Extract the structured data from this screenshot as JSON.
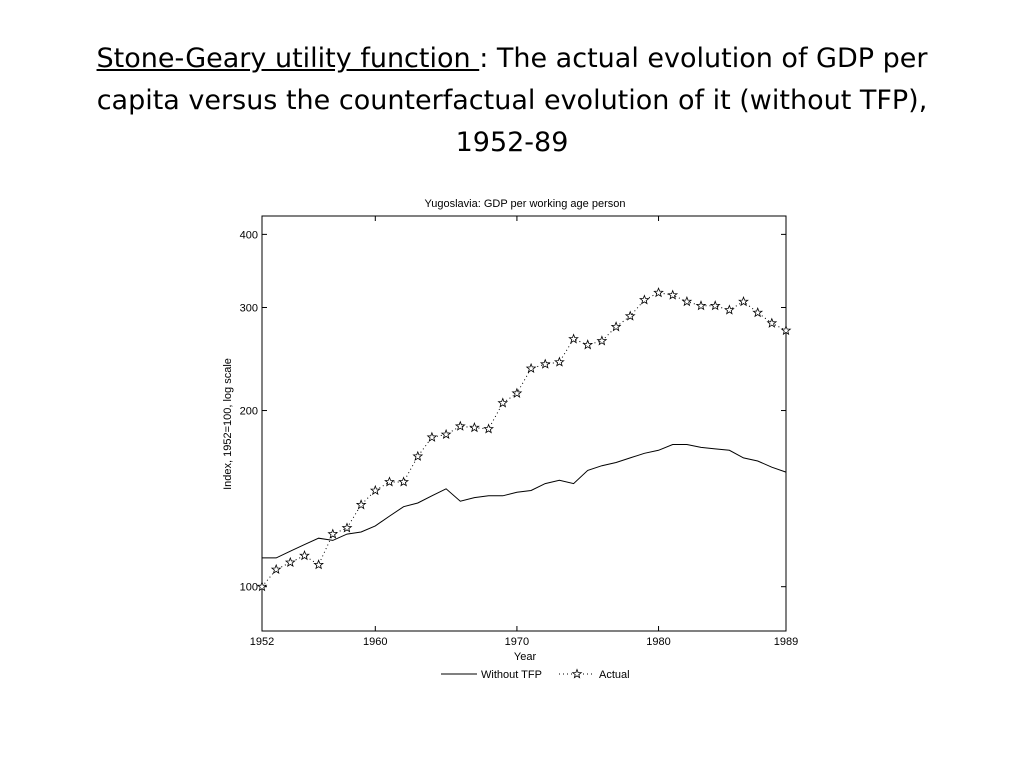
{
  "slide": {
    "title_underlined": "Stone-Geary utility function ",
    "title_rest": ": The actual evolution of GDP per capita versus the counterfactual evolution of it (without TFP), 1952-89"
  },
  "chart_data": {
    "type": "line",
    "title": "Yugoslavia: GDP per working age person",
    "xlabel": "Year",
    "ylabel": "Index, 1952=100, log scale",
    "yscale": "log",
    "xlim": [
      1952,
      1989
    ],
    "ylim": [
      84,
      430
    ],
    "xticks": [
      1952,
      1960,
      1970,
      1980,
      1989
    ],
    "yticks": [
      100,
      200,
      300,
      400
    ],
    "grid": false,
    "legend": "bottom-center",
    "x": [
      1952,
      1953,
      1954,
      1955,
      1956,
      1957,
      1958,
      1959,
      1960,
      1961,
      1962,
      1963,
      1964,
      1965,
      1966,
      1967,
      1968,
      1969,
      1970,
      1971,
      1972,
      1973,
      1974,
      1975,
      1976,
      1977,
      1978,
      1979,
      1980,
      1981,
      1982,
      1983,
      1984,
      1985,
      1986,
      1987,
      1988,
      1989
    ],
    "series": [
      {
        "name": "Without TFP",
        "style": "solid",
        "values": [
          112,
          112,
          115,
          118,
          121,
          120,
          123,
          124,
          127,
          132,
          137,
          139,
          143,
          147,
          140,
          142,
          143,
          143,
          145,
          146,
          150,
          152,
          150,
          158,
          161,
          163,
          166,
          169,
          171,
          175,
          175,
          173,
          172,
          171,
          166,
          164,
          160,
          157
        ]
      },
      {
        "name": "Actual",
        "style": "dotted-star",
        "values": [
          100,
          107,
          110,
          113,
          109,
          123,
          126,
          138,
          146,
          151,
          151,
          167,
          180,
          182,
          188,
          187,
          186,
          206,
          214,
          236,
          240,
          242,
          265,
          259,
          263,
          278,
          290,
          309,
          318,
          315,
          307,
          302,
          302,
          297,
          307,
          294,
          282,
          274
        ]
      }
    ],
    "line_color": "#000000"
  }
}
